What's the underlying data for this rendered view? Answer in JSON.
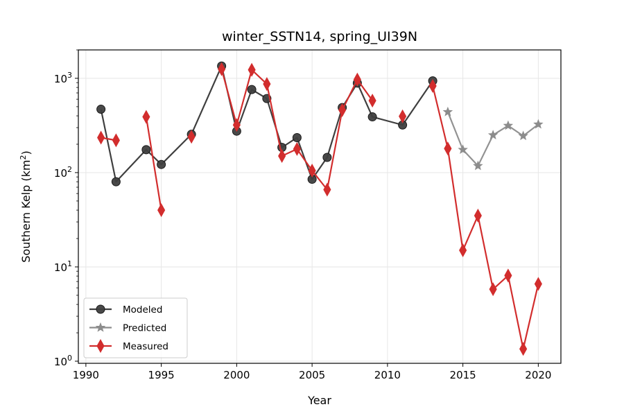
{
  "chart_data": {
    "type": "line",
    "title": "winter_SSTN14, spring_UI39N",
    "xlabel": "Year",
    "ylabel_main": "Southern Kelp (km",
    "ylabel_sup": "2",
    "ylabel_close": ")",
    "yscale": "log",
    "xlim": [
      1989.5,
      2021.5
    ],
    "ylim": [
      0.95,
      2000
    ],
    "grid": true,
    "legend_position": "lower-left",
    "x_ticks": [
      1990,
      1995,
      2000,
      2005,
      2010,
      2015,
      2020
    ],
    "x_tick_labels": [
      "1990",
      "1995",
      "2000",
      "2005",
      "2010",
      "2015",
      "2020"
    ],
    "y_ticks": [
      1,
      10,
      100,
      1000
    ],
    "y_tick_bases": [
      "10",
      "10",
      "10",
      "10"
    ],
    "y_tick_exps": [
      "0",
      "1",
      "2",
      "3"
    ],
    "series": [
      {
        "name": "Modeled",
        "color": "#3f3f3f",
        "marker": "circle",
        "points": [
          [
            1991,
            470
          ],
          [
            1992,
            80
          ],
          [
            1994,
            175
          ],
          [
            1995,
            122
          ],
          [
            1997,
            255
          ],
          [
            1999,
            1350
          ],
          [
            2000,
            275
          ],
          [
            2001,
            760
          ],
          [
            2002,
            610
          ],
          [
            2003,
            185
          ],
          [
            2004,
            235
          ],
          [
            2005,
            85
          ],
          [
            2006,
            145
          ],
          [
            2007,
            490
          ],
          [
            2008,
            890
          ],
          [
            2009,
            390
          ],
          [
            2011,
            320
          ],
          [
            2013,
            940
          ]
        ]
      },
      {
        "name": "Predicted",
        "color": "#8c8c8c",
        "marker": "star",
        "points": [
          [
            2014,
            440
          ],
          [
            2015,
            175
          ],
          [
            2016,
            118
          ],
          [
            2017,
            250
          ],
          [
            2018,
            315
          ],
          [
            2019,
            245
          ],
          [
            2020,
            325
          ]
        ]
      },
      {
        "name": "Measured",
        "color": "#d22d2d",
        "marker": "thin-diamond",
        "segments": [
          [
            [
              1991,
              235
            ],
            [
              1992,
              220
            ]
          ],
          [
            [
              1994,
              390
            ],
            [
              1995,
              40
            ]
          ],
          [
            [
              1997,
              240
            ]
          ],
          [
            [
              1999,
              1250
            ],
            [
              2000,
              320
            ],
            [
              2001,
              1230
            ],
            [
              2002,
              870
            ],
            [
              2003,
              150
            ],
            [
              2004,
              178
            ],
            [
              2005,
              105
            ],
            [
              2006,
              66
            ],
            [
              2007,
              460
            ],
            [
              2008,
              970
            ],
            [
              2009,
              580
            ]
          ],
          [
            [
              2011,
              395
            ]
          ],
          [
            [
              2013,
              830
            ],
            [
              2014,
              180
            ],
            [
              2015,
              15
            ],
            [
              2016,
              35
            ],
            [
              2017,
              5.8
            ],
            [
              2018,
              8.1
            ],
            [
              2019,
              1.35
            ],
            [
              2020,
              6.6
            ]
          ]
        ]
      }
    ]
  }
}
